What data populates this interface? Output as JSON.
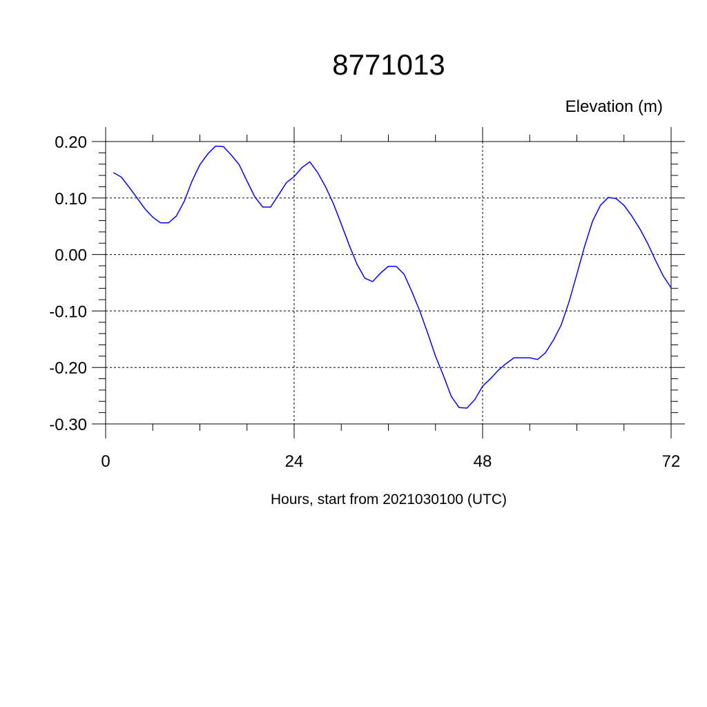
{
  "chart_data": {
    "type": "line",
    "title": "8771013",
    "ylabel": "Elevation (m)",
    "xlabel": "Hours, start from 2021030100 (UTC)",
    "x": [
      1,
      2,
      3,
      4,
      5,
      6,
      7,
      8,
      9,
      10,
      11,
      12,
      13,
      14,
      15,
      16,
      17,
      18,
      19,
      20,
      21,
      22,
      23,
      24,
      25,
      26,
      27,
      28,
      29,
      30,
      31,
      32,
      33,
      34,
      35,
      36,
      37,
      38,
      39,
      40,
      41,
      42,
      43,
      44,
      45,
      46,
      47,
      48,
      49,
      50,
      51,
      52,
      53,
      54,
      55,
      56,
      57,
      58,
      59,
      60,
      61,
      62,
      63,
      64,
      65,
      66,
      67,
      68,
      69,
      70,
      71,
      72
    ],
    "series": [
      {
        "name": "Elevation",
        "color": "#0000ff",
        "values": [
          0.145,
          0.137,
          0.119,
          0.1,
          0.081,
          0.066,
          0.056,
          0.056,
          0.068,
          0.094,
          0.13,
          0.159,
          0.178,
          0.192,
          0.191,
          0.176,
          0.159,
          0.13,
          0.102,
          0.084,
          0.084,
          0.105,
          0.127,
          0.138,
          0.154,
          0.164,
          0.145,
          0.12,
          0.09,
          0.054,
          0.017,
          -0.017,
          -0.042,
          -0.048,
          -0.033,
          -0.021,
          -0.021,
          -0.035,
          -0.066,
          -0.1,
          -0.139,
          -0.18,
          -0.214,
          -0.251,
          -0.271,
          -0.272,
          -0.257,
          -0.233,
          -0.22,
          -0.205,
          -0.193,
          -0.183,
          -0.183,
          -0.183,
          -0.186,
          -0.174,
          -0.152,
          -0.125,
          -0.084,
          -0.035,
          0.015,
          0.059,
          0.087,
          0.101,
          0.099,
          0.087,
          0.068,
          0.046,
          0.02,
          -0.01,
          -0.038,
          -0.059
        ]
      }
    ],
    "xlim": [
      0,
      72
    ],
    "xticks": [
      0,
      24,
      48,
      72
    ],
    "x_minor_ticks": [
      6,
      12,
      18,
      30,
      36,
      42,
      54,
      60,
      66
    ],
    "ylim": [
      -0.3,
      0.2
    ],
    "yticks": [
      {
        "value": 0.2,
        "label": "0.20"
      },
      {
        "value": 0.1,
        "label": "0.10"
      },
      {
        "value": 0,
        "label": "0.00"
      },
      {
        "value": -0.1,
        "label": "-0.10"
      },
      {
        "value": -0.2,
        "label": "-0.20"
      },
      {
        "value": -0.3,
        "label": "-0.30"
      }
    ],
    "y_minor_ticks": [
      0.18,
      0.16,
      0.14,
      0.12,
      0.08,
      0.06,
      0.04,
      0.02,
      -0.02,
      -0.04,
      -0.06,
      -0.08,
      -0.12,
      -0.14,
      -0.16,
      -0.18,
      -0.22,
      -0.24,
      -0.26,
      -0.28
    ],
    "grid": true
  }
}
